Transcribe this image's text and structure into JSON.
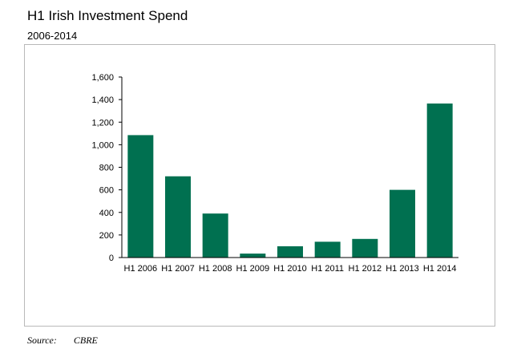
{
  "title": "H1 Irish Investment Spend",
  "subtitle": "2006-2014",
  "source_label": "Source:",
  "source_value": "CBRE",
  "colors": {
    "bar": "#007050",
    "axis": "#000000",
    "frame": "#b9b9b9"
  },
  "chart_data": {
    "type": "bar",
    "title": "H1 Irish Investment Spend",
    "subtitle": "2006-2014",
    "categories": [
      "H1 2006",
      "H1 2007",
      "H1 2008",
      "H1 2009",
      "H1 2010",
      "H1 2011",
      "H1 2012",
      "H1 2013",
      "H1 2014"
    ],
    "values": [
      1085,
      720,
      390,
      35,
      100,
      140,
      165,
      600,
      1365
    ],
    "ylim": [
      0,
      1600
    ],
    "yticks": [
      0,
      200,
      400,
      600,
      800,
      1000,
      1200,
      1400,
      1600
    ],
    "ytick_labels": [
      "0",
      "200",
      "400",
      "600",
      "800",
      "1,000",
      "1,200",
      "1,400",
      "1,600"
    ],
    "xlabel": "",
    "ylabel": "",
    "grid": false,
    "legend": "none"
  }
}
